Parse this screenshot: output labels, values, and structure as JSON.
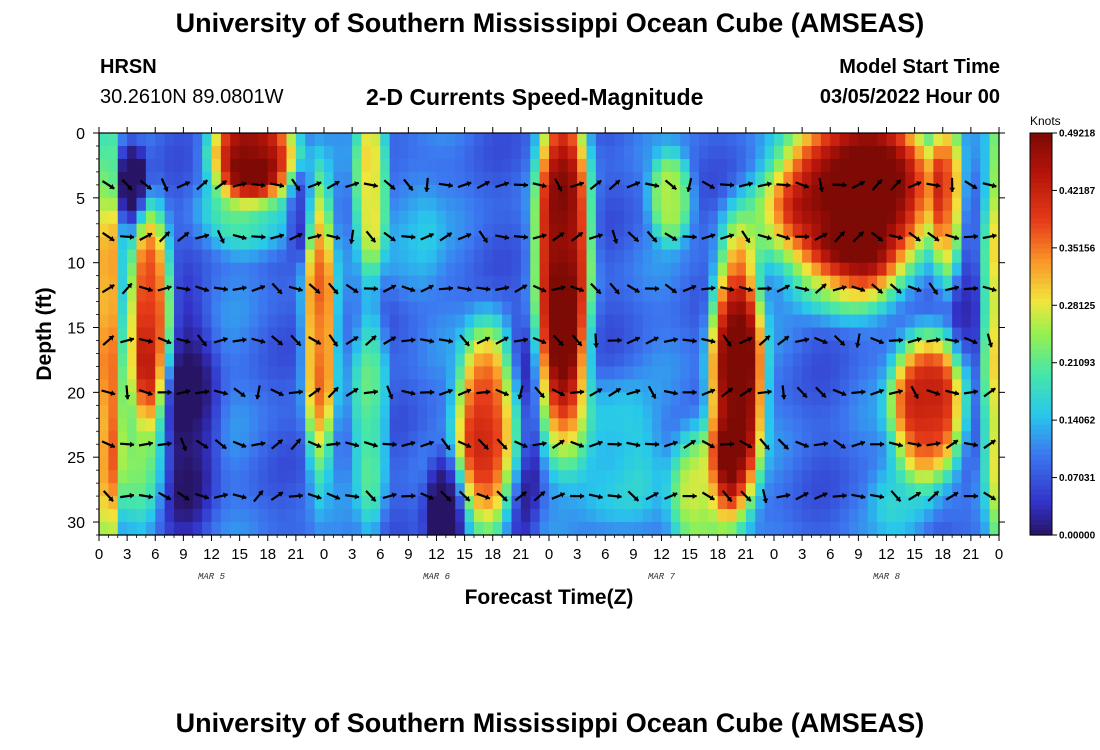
{
  "header": {
    "title": "University of Southern Mississippi Ocean Cube (AMSEAS)",
    "station": "HRSN",
    "coords": "30.2610N  89.0801W",
    "subtitle": "2-D Currents Speed-Magnitude",
    "model_start_label": "Model Start Time",
    "model_start_value": "03/05/2022 Hour 00"
  },
  "footer": {
    "title": "University of Southern Mississippi Ocean Cube (AMSEAS)"
  },
  "chart_data": {
    "type": "heatmap",
    "title": "2-D Currents Speed-Magnitude",
    "xlabel": "Forecast Time(Z)",
    "ylabel": "Depth (ft)",
    "x_range_hours": [
      0,
      96
    ],
    "xticks_hours": [
      0,
      3,
      6,
      9,
      12,
      15,
      18,
      21,
      24,
      27,
      30,
      33,
      36,
      39,
      42,
      45,
      48,
      51,
      54,
      57,
      60,
      63,
      66,
      69,
      72,
      75,
      78,
      81,
      84,
      87,
      90,
      93,
      96
    ],
    "xtick_labels": [
      "0",
      "3",
      "6",
      "9",
      "12",
      "15",
      "18",
      "21",
      "0",
      "3",
      "6",
      "9",
      "12",
      "15",
      "18",
      "21",
      "0",
      "3",
      "6",
      "9",
      "12",
      "15",
      "18",
      "21",
      "0",
      "3",
      "6",
      "9",
      "12",
      "15",
      "18",
      "21",
      "0"
    ],
    "day_labels": [
      {
        "label": "MAR 5",
        "hour": 12
      },
      {
        "label": "MAR 6",
        "hour": 36
      },
      {
        "label": "MAR 7",
        "hour": 60
      },
      {
        "label": "MAR 8",
        "hour": 84
      }
    ],
    "y_range_ft": [
      0,
      31
    ],
    "yticks_ft": [
      0,
      5,
      10,
      15,
      20,
      25,
      30
    ],
    "y_inverted": true,
    "colorbar": {
      "title": "Knots",
      "min": 0.0,
      "max": 0.49218,
      "tick_labels": [
        "0.00000",
        "0.07031",
        "0.14062",
        "0.21093",
        "0.28125",
        "0.35156",
        "0.42187",
        "0.49218"
      ]
    },
    "vector_depths_ft": [
      4,
      8,
      12,
      16,
      20,
      24,
      28
    ],
    "speed_features": [
      {
        "hour_center": 1.0,
        "depth_center": 18,
        "hour_radius": 1.2,
        "depth_radius": 16,
        "knots": 0.24
      },
      {
        "hour_center": 3.5,
        "depth_center": 4,
        "hour_radius": 1.5,
        "depth_radius": 3,
        "knots": -0.12
      },
      {
        "hour_center": 5.5,
        "depth_center": 14,
        "hour_radius": 2.0,
        "depth_radius": 7,
        "knots": 0.3
      },
      {
        "hour_center": 4.5,
        "depth_center": 24,
        "hour_radius": 2.5,
        "depth_radius": 6,
        "knots": 0.12
      },
      {
        "hour_center": 16.5,
        "depth_center": 1.5,
        "hour_radius": 4.0,
        "depth_radius": 3,
        "knots": 0.38
      },
      {
        "hour_center": 16.5,
        "depth_center": 6,
        "hour_radius": 5.0,
        "depth_radius": 3,
        "knots": 0.1
      },
      {
        "hour_center": 9.5,
        "depth_center": 22,
        "hour_radius": 3.0,
        "depth_radius": 8,
        "knots": -0.08
      },
      {
        "hour_center": 23.5,
        "depth_center": 15,
        "hour_radius": 1.5,
        "depth_radius": 10,
        "knots": 0.26
      },
      {
        "hour_center": 21.5,
        "depth_center": 6,
        "hour_radius": 1.2,
        "depth_radius": 3,
        "knots": -0.08
      },
      {
        "hour_center": 29.0,
        "depth_center": 4,
        "hour_radius": 1.5,
        "depth_radius": 6,
        "knots": 0.2
      },
      {
        "hour_center": 29.0,
        "depth_center": 22,
        "hour_radius": 1.6,
        "depth_radius": 8,
        "knots": 0.12
      },
      {
        "hour_center": 33.0,
        "depth_center": 8,
        "hour_radius": 3.0,
        "depth_radius": 5,
        "knots": 0.05
      },
      {
        "hour_center": 37.0,
        "depth_center": 29,
        "hour_radius": 2.0,
        "depth_radius": 4,
        "knots": -0.12
      },
      {
        "hour_center": 41.5,
        "depth_center": 23,
        "hour_radius": 3.0,
        "depth_radius": 7,
        "knots": 0.32
      },
      {
        "hour_center": 45.0,
        "depth_center": 24,
        "hour_radius": 2.0,
        "depth_radius": 8,
        "knots": -0.08
      },
      {
        "hour_center": 49.5,
        "depth_center": 9,
        "hour_radius": 2.6,
        "depth_radius": 11,
        "knots": 0.38
      },
      {
        "hour_center": 49.5,
        "depth_center": 20,
        "hour_radius": 2.5,
        "depth_radius": 6,
        "knots": 0.12
      },
      {
        "hour_center": 55.0,
        "depth_center": 25,
        "hour_radius": 4.0,
        "depth_radius": 5,
        "knots": 0.08
      },
      {
        "hour_center": 61.0,
        "depth_center": 5,
        "hour_radius": 2.0,
        "depth_radius": 3,
        "knots": 0.16
      },
      {
        "hour_center": 64.5,
        "depth_center": 28,
        "hour_radius": 3.0,
        "depth_radius": 5,
        "knots": 0.18
      },
      {
        "hour_center": 68.0,
        "depth_center": 19,
        "hour_radius": 2.5,
        "depth_radius": 9,
        "knots": 0.42
      },
      {
        "hour_center": 71.0,
        "depth_center": 7,
        "hour_radius": 4.0,
        "depth_radius": 3,
        "knots": 0.08
      },
      {
        "hour_center": 81.0,
        "depth_center": 4.5,
        "hour_radius": 7.5,
        "depth_radius": 6,
        "knots": 0.42
      },
      {
        "hour_center": 79.0,
        "depth_center": 11,
        "hour_radius": 5.0,
        "depth_radius": 3,
        "knots": 0.12
      },
      {
        "hour_center": 88.5,
        "depth_center": 21,
        "hour_radius": 3.5,
        "depth_radius": 5,
        "knots": 0.34
      },
      {
        "hour_center": 90.5,
        "depth_center": 5,
        "hour_radius": 1.5,
        "depth_radius": 6,
        "knots": 0.2
      },
      {
        "hour_center": 86.0,
        "depth_center": 28,
        "hour_radius": 3.0,
        "depth_radius": 3,
        "knots": 0.06
      },
      {
        "hour_center": 92.5,
        "depth_center": 16,
        "hour_radius": 1.5,
        "depth_radius": 10,
        "knots": -0.06
      },
      {
        "hour_center": 95.5,
        "depth_center": 16,
        "hour_radius": 1.0,
        "depth_radius": 16,
        "knots": 0.18
      }
    ]
  }
}
